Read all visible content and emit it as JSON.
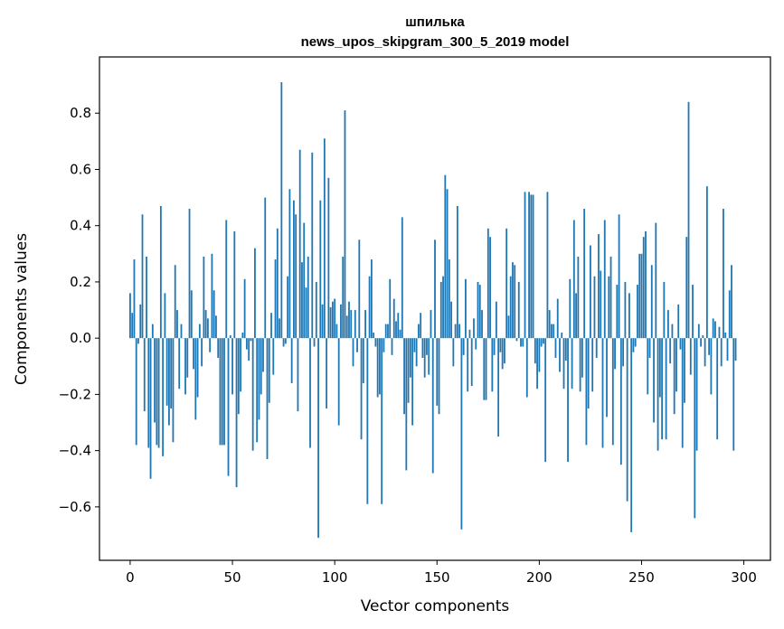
{
  "chart_data": {
    "type": "bar",
    "title_line1": "шпилька",
    "title_line2": "news_upos_skipgram_300_5_2019 model",
    "xlabel": "Vector components",
    "ylabel": "Components values",
    "xlim": [
      -15,
      313
    ],
    "ylim": [
      -0.79,
      1.0
    ],
    "xticks": [
      0,
      50,
      100,
      150,
      200,
      250,
      300
    ],
    "yticks": [
      -0.6,
      -0.4,
      -0.2,
      0.0,
      0.2,
      0.4,
      0.6,
      0.8
    ],
    "ytick_labels": [
      "−0.6",
      "−0.4",
      "−0.2",
      "0.0",
      "0.2",
      "0.4",
      "0.6",
      "0.8"
    ],
    "grid": false,
    "bar_color": "#1f77b4",
    "values": [
      0.16,
      0.09,
      0.28,
      -0.38,
      -0.02,
      0.12,
      0.44,
      -0.26,
      0.29,
      -0.39,
      -0.5,
      0.05,
      -0.3,
      -0.38,
      -0.39,
      0.47,
      -0.42,
      0.16,
      -0.24,
      -0.31,
      -0.25,
      -0.37,
      0.26,
      0.1,
      -0.18,
      0.05,
      0.0,
      -0.2,
      -0.14,
      0.46,
      0.17,
      -0.11,
      -0.29,
      -0.21,
      0.05,
      -0.1,
      0.29,
      0.1,
      0.07,
      -0.05,
      0.3,
      0.17,
      0.08,
      -0.07,
      -0.38,
      -0.38,
      -0.38,
      0.42,
      -0.49,
      0.01,
      -0.2,
      0.38,
      -0.53,
      -0.27,
      -0.19,
      0.02,
      0.21,
      -0.04,
      -0.08,
      -0.01,
      -0.4,
      0.32,
      -0.37,
      -0.29,
      -0.2,
      -0.12,
      0.5,
      -0.43,
      -0.23,
      0.09,
      -0.13,
      0.28,
      0.39,
      0.07,
      0.91,
      -0.03,
      -0.02,
      0.22,
      0.53,
      -0.16,
      0.49,
      0.44,
      -0.26,
      0.67,
      0.27,
      0.41,
      0.18,
      0.29,
      -0.39,
      0.66,
      -0.03,
      0.2,
      -0.71,
      0.49,
      0.12,
      0.71,
      -0.25,
      0.57,
      0.11,
      0.13,
      0.14,
      0.05,
      -0.31,
      0.12,
      0.29,
      0.81,
      0.08,
      0.13,
      0.1,
      -0.1,
      0.1,
      -0.05,
      0.35,
      -0.36,
      -0.16,
      0.1,
      -0.59,
      0.22,
      0.28,
      0.02,
      -0.03,
      -0.21,
      -0.2,
      -0.59,
      -0.05,
      0.05,
      0.05,
      0.21,
      -0.06,
      0.14,
      0.06,
      0.09,
      0.03,
      0.43,
      -0.27,
      -0.47,
      -0.23,
      -0.14,
      -0.31,
      -0.05,
      -0.1,
      0.05,
      0.09,
      -0.07,
      -0.14,
      -0.06,
      -0.13,
      0.1,
      -0.48,
      0.35,
      -0.24,
      -0.27,
      0.2,
      0.22,
      0.58,
      0.53,
      0.28,
      0.13,
      -0.1,
      0.05,
      0.47,
      0.05,
      -0.68,
      -0.06,
      0.21,
      -0.19,
      0.03,
      -0.17,
      0.07,
      -0.04,
      0.2,
      0.19,
      0.1,
      -0.22,
      -0.22,
      0.39,
      0.36,
      -0.19,
      -0.06,
      0.13,
      -0.35,
      -0.05,
      -0.11,
      -0.09,
      0.39,
      0.08,
      0.22,
      0.27,
      0.26,
      -0.01,
      0.2,
      -0.03,
      -0.03,
      0.52,
      -0.21,
      0.52,
      0.51,
      0.51,
      -0.09,
      -0.18,
      -0.12,
      -0.03,
      -0.02,
      -0.44,
      0.52,
      0.1,
      0.05,
      0.05,
      -0.07,
      0.14,
      -0.12,
      0.02,
      -0.18,
      -0.08,
      -0.44,
      0.21,
      -0.18,
      0.42,
      0.16,
      0.29,
      -0.19,
      -0.14,
      0.46,
      -0.38,
      -0.25,
      0.33,
      -0.19,
      0.22,
      -0.07,
      0.37,
      0.24,
      -0.39,
      0.42,
      -0.28,
      0.22,
      0.29,
      -0.38,
      -0.11,
      0.19,
      0.44,
      -0.45,
      -0.1,
      0.2,
      -0.58,
      0.16,
      -0.69,
      -0.05,
      -0.03,
      0.19,
      0.3,
      0.3,
      0.36,
      0.38,
      -0.2,
      -0.07,
      0.26,
      -0.3,
      0.41,
      -0.4,
      -0.21,
      -0.36,
      0.2,
      -0.36,
      0.1,
      -0.09,
      0.05,
      -0.27,
      -0.19,
      0.12,
      -0.04,
      -0.39,
      -0.23,
      0.36,
      0.84,
      -0.13,
      0.19,
      -0.64,
      -0.4,
      0.05,
      -0.03,
      0.01,
      -0.1,
      0.54,
      -0.06,
      -0.2,
      0.07,
      0.06,
      -0.36,
      0.04,
      -0.1,
      0.46,
      0.02,
      -0.08,
      0.17,
      0.26,
      -0.4,
      -0.08
    ]
  }
}
